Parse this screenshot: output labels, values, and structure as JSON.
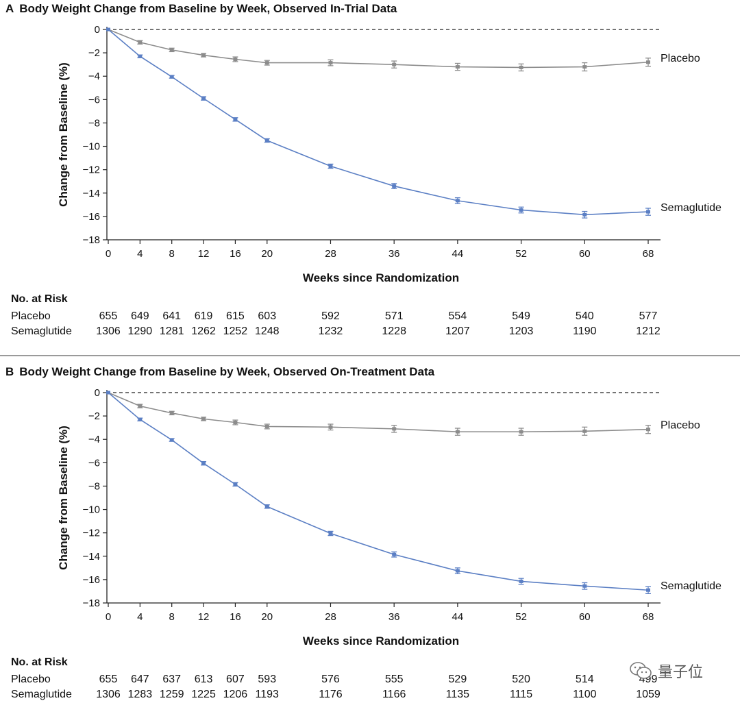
{
  "chart_data": [
    {
      "type": "line",
      "panel": "A",
      "title": "Body Weight Change from Baseline by Week, Observed In-Trial Data",
      "xlabel": "Weeks since Randomization",
      "ylabel": "Change from Baseline (%)",
      "x": [
        0,
        4,
        8,
        12,
        16,
        20,
        28,
        36,
        44,
        52,
        60,
        68
      ],
      "x_tick_labels": [
        "0",
        "4",
        "8",
        "12",
        "16",
        "20",
        "28",
        "36",
        "44",
        "52",
        "60",
        "68"
      ],
      "y_tick_values": [
        0,
        -2,
        -4,
        -6,
        -8,
        -10,
        -12,
        -14,
        -16,
        -18
      ],
      "y_tick_labels": [
        "0",
        "−2",
        "−4",
        "−6",
        "−8",
        "−10",
        "−12",
        "−14",
        "−16",
        "−18"
      ],
      "ylim": [
        -18,
        0
      ],
      "reference_line": 0,
      "series": [
        {
          "name": "Placebo",
          "color": "#8c8c8c",
          "values": [
            0,
            -1.1,
            -1.75,
            -2.2,
            -2.55,
            -2.85,
            -2.85,
            -3.0,
            -3.2,
            -3.25,
            -3.2,
            -2.8
          ],
          "error": [
            0,
            0.15,
            0.15,
            0.15,
            0.2,
            0.2,
            0.25,
            0.3,
            0.3,
            0.3,
            0.35,
            0.35
          ]
        },
        {
          "name": "Semaglutide",
          "color": "#5b7fc4",
          "values": [
            0,
            -2.3,
            -4.05,
            -5.9,
            -7.7,
            -9.5,
            -11.7,
            -13.4,
            -14.65,
            -15.45,
            -15.85,
            -15.6
          ],
          "error": [
            0,
            0.12,
            0.12,
            0.15,
            0.15,
            0.15,
            0.18,
            0.22,
            0.25,
            0.25,
            0.28,
            0.3
          ]
        }
      ],
      "risk_table": {
        "title": "No. at Risk",
        "rows": [
          {
            "label": "Placebo",
            "values": [
              "655",
              "649",
              "641",
              "619",
              "615",
              "603",
              "592",
              "571",
              "554",
              "549",
              "540",
              "577"
            ]
          },
          {
            "label": "Semaglutide",
            "values": [
              "1306",
              "1290",
              "1281",
              "1262",
              "1252",
              "1248",
              "1232",
              "1228",
              "1207",
              "1203",
              "1190",
              "1212"
            ]
          }
        ]
      }
    },
    {
      "type": "line",
      "panel": "B",
      "title": "Body Weight Change from Baseline by Week, Observed On-Treatment Data",
      "xlabel": "Weeks since Randomization",
      "ylabel": "Change from Baseline (%)",
      "x": [
        0,
        4,
        8,
        12,
        16,
        20,
        28,
        36,
        44,
        52,
        60,
        68
      ],
      "x_tick_labels": [
        "0",
        "4",
        "8",
        "12",
        "16",
        "20",
        "28",
        "36",
        "44",
        "52",
        "60",
        "68"
      ],
      "y_tick_values": [
        0,
        -2,
        -4,
        -6,
        -8,
        -10,
        -12,
        -14,
        -16,
        -18
      ],
      "y_tick_labels": [
        "0",
        "−2",
        "−4",
        "−6",
        "−8",
        "−10",
        "−12",
        "−14",
        "−16",
        "−18"
      ],
      "ylim": [
        -18,
        0
      ],
      "reference_line": 0,
      "series": [
        {
          "name": "Placebo",
          "color": "#8c8c8c",
          "values": [
            0,
            -1.15,
            -1.75,
            -2.25,
            -2.55,
            -2.9,
            -2.95,
            -3.1,
            -3.35,
            -3.35,
            -3.3,
            -3.15
          ],
          "error": [
            0,
            0.15,
            0.15,
            0.15,
            0.2,
            0.2,
            0.25,
            0.3,
            0.3,
            0.3,
            0.35,
            0.35
          ]
        },
        {
          "name": "Semaglutide",
          "color": "#5b7fc4",
          "values": [
            0,
            -2.3,
            -4.05,
            -6.05,
            -7.85,
            -9.75,
            -12.05,
            -13.85,
            -15.25,
            -16.15,
            -16.55,
            -16.9
          ],
          "error": [
            0,
            0.12,
            0.12,
            0.15,
            0.15,
            0.15,
            0.18,
            0.22,
            0.25,
            0.25,
            0.28,
            0.3
          ]
        }
      ],
      "risk_table": {
        "title": "No. at Risk",
        "rows": [
          {
            "label": "Placebo",
            "values": [
              "655",
              "647",
              "637",
              "613",
              "607",
              "593",
              "576",
              "555",
              "529",
              "520",
              "514",
              "499"
            ]
          },
          {
            "label": "Semaglutide",
            "values": [
              "1306",
              "1283",
              "1259",
              "1225",
              "1206",
              "1193",
              "1176",
              "1166",
              "1135",
              "1115",
              "1100",
              "1059"
            ]
          }
        ]
      }
    }
  ],
  "watermark": {
    "text": "量子位",
    "icon": "chat-bubbles-icon"
  }
}
